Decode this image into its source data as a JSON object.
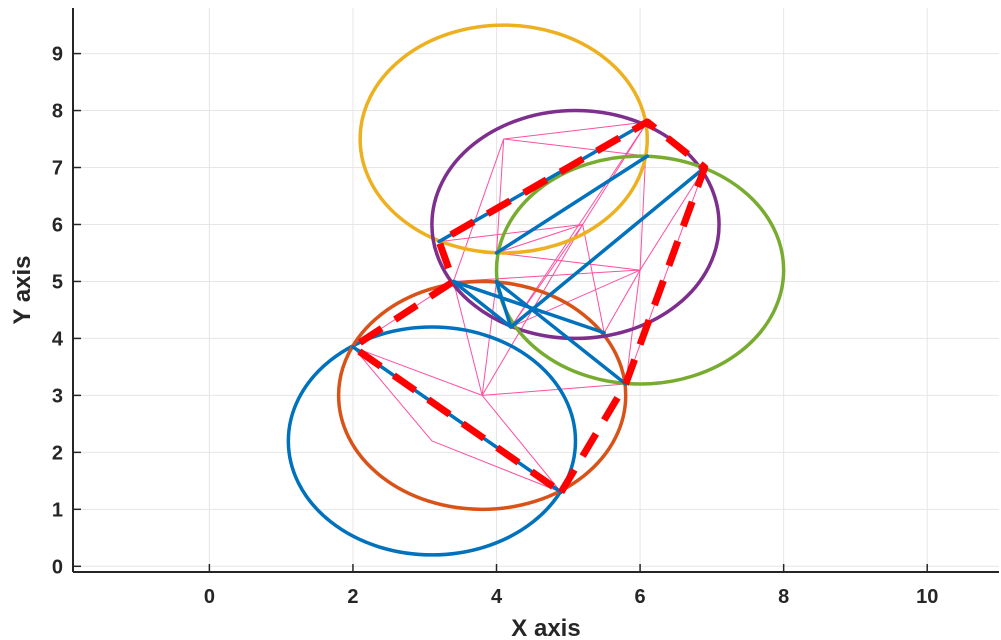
{
  "chart_data": {
    "type": "line",
    "title": "",
    "xlabel": "X axis",
    "ylabel": "Y axis",
    "xlim": [
      -1.9,
      11
    ],
    "ylim": [
      -0.1,
      9.8
    ],
    "xticks": [
      0,
      2,
      4,
      6,
      8,
      10
    ],
    "yticks": [
      0,
      1,
      2,
      3,
      4,
      5,
      6,
      7,
      8,
      9
    ],
    "grid": true,
    "colors": {
      "axis": "#262626",
      "grid": "#e6e6e6",
      "mesh": "#ff4f9e",
      "path": "#0072bd",
      "route": "#ff0000"
    },
    "circles": [
      {
        "cx": 3.1,
        "cy": 2.2,
        "rx": 2.0,
        "ry": 2.0,
        "color": "#0072bd"
      },
      {
        "cx": 3.8,
        "cy": 3.0,
        "rx": 2.0,
        "ry": 2.0,
        "color": "#d95319"
      },
      {
        "cx": 4.1,
        "cy": 7.5,
        "rx": 2.0,
        "ry": 2.0,
        "color": "#edb120"
      },
      {
        "cx": 5.1,
        "cy": 6.0,
        "rx": 2.0,
        "ry": 2.0,
        "color": "#7e2f8e"
      },
      {
        "cx": 6.0,
        "cy": 5.2,
        "rx": 2.0,
        "ry": 2.0,
        "color": "#77ac30"
      }
    ],
    "mesh_edges": [
      [
        [
          2.0,
          3.85
        ],
        [
          3.8,
          3.0
        ]
      ],
      [
        [
          2.0,
          3.85
        ],
        [
          3.1,
          2.2
        ]
      ],
      [
        [
          3.1,
          2.2
        ],
        [
          4.9,
          1.3
        ]
      ],
      [
        [
          3.8,
          3.0
        ],
        [
          4.9,
          1.3
        ]
      ],
      [
        [
          3.8,
          3.0
        ],
        [
          3.4,
          5.0
        ]
      ],
      [
        [
          3.8,
          3.0
        ],
        [
          4.0,
          5.0
        ]
      ],
      [
        [
          3.8,
          3.0
        ],
        [
          5.2,
          6.0
        ]
      ],
      [
        [
          3.8,
          3.0
        ],
        [
          5.8,
          3.2
        ]
      ],
      [
        [
          2.0,
          3.85
        ],
        [
          3.4,
          5.0
        ]
      ],
      [
        [
          3.4,
          5.0
        ],
        [
          4.1,
          7.5
        ]
      ],
      [
        [
          4.1,
          7.5
        ],
        [
          6.1,
          7.8
        ]
      ],
      [
        [
          4.1,
          7.5
        ],
        [
          4.0,
          5.5
        ]
      ],
      [
        [
          3.2,
          5.7
        ],
        [
          6.1,
          7.8
        ]
      ],
      [
        [
          3.2,
          5.7
        ],
        [
          5.2,
          6.0
        ]
      ],
      [
        [
          4.0,
          5.5
        ],
        [
          5.2,
          6.0
        ]
      ],
      [
        [
          5.2,
          6.0
        ],
        [
          5.5,
          4.1
        ]
      ],
      [
        [
          5.2,
          6.0
        ],
        [
          4.2,
          4.2
        ]
      ],
      [
        [
          5.2,
          6.0
        ],
        [
          6.1,
          7.8
        ]
      ],
      [
        [
          4.0,
          5.5
        ],
        [
          6.0,
          5.2
        ]
      ],
      [
        [
          4.2,
          4.2
        ],
        [
          6.0,
          5.2
        ]
      ],
      [
        [
          6.0,
          5.2
        ],
        [
          6.9,
          7.0
        ]
      ],
      [
        [
          6.0,
          5.2
        ],
        [
          6.1,
          7.8
        ]
      ],
      [
        [
          6.0,
          5.2
        ],
        [
          5.8,
          3.2
        ]
      ],
      [
        [
          5.5,
          4.1
        ],
        [
          6.0,
          5.2
        ]
      ],
      [
        [
          3.4,
          5.0
        ],
        [
          6.0,
          5.2
        ]
      ],
      [
        [
          4.1,
          7.5
        ],
        [
          6.1,
          7.2
        ]
      ],
      [
        [
          4.2,
          4.2
        ],
        [
          6.1,
          7.8
        ]
      ],
      [
        [
          5.8,
          3.2
        ],
        [
          6.9,
          7.0
        ]
      ],
      [
        [
          4.0,
          5.0
        ],
        [
          5.8,
          3.2
        ]
      ]
    ],
    "path_edges": [
      [
        [
          2.0,
          3.85
        ],
        [
          4.9,
          1.3
        ]
      ],
      [
        [
          3.4,
          5.0
        ],
        [
          5.5,
          4.1
        ]
      ],
      [
        [
          4.0,
          5.0
        ],
        [
          5.8,
          3.2
        ]
      ],
      [
        [
          3.4,
          5.0
        ],
        [
          4.2,
          4.2
        ]
      ],
      [
        [
          4.0,
          5.0
        ],
        [
          4.2,
          4.2
        ]
      ],
      [
        [
          4.2,
          4.2
        ],
        [
          6.9,
          7.0
        ]
      ],
      [
        [
          4.0,
          5.5
        ],
        [
          6.1,
          7.2
        ]
      ],
      [
        [
          3.2,
          5.7
        ],
        [
          6.1,
          7.8
        ]
      ]
    ],
    "route": [
      [
        4.9,
        1.3
      ],
      [
        5.8,
        3.2
      ],
      [
        6.9,
        7.0
      ],
      [
        6.1,
        7.8
      ],
      [
        3.2,
        5.7
      ],
      [
        3.4,
        5.0
      ],
      [
        2.0,
        3.85
      ],
      [
        4.9,
        1.3
      ]
    ]
  }
}
